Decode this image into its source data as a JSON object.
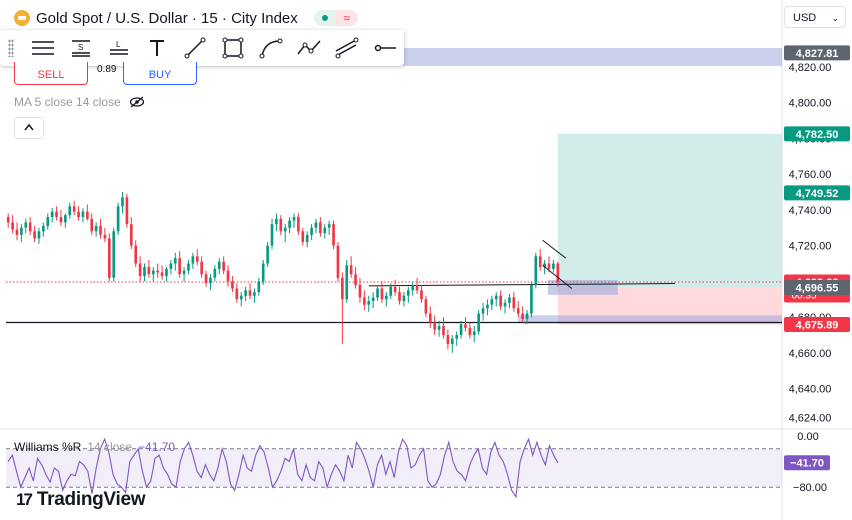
{
  "header": {
    "symbol_title": "Gold Spot / U.S. Dollar · 15 · City Index",
    "symbol_icon": "gold-bar-icon",
    "live_indicator": "≈"
  },
  "toolbar": {
    "tools": [
      {
        "name": "lines-tool",
        "icon": "horizontal-lines-icon"
      },
      {
        "name": "s-lines-tool",
        "icon": "s-lines-icon"
      },
      {
        "name": "l-lines-tool",
        "icon": "l-lines-icon"
      },
      {
        "name": "text-tool",
        "icon": "text-icon"
      },
      {
        "name": "trendline-tool",
        "icon": "trendline-icon"
      },
      {
        "name": "rectangle-tool",
        "icon": "rectangle-icon"
      },
      {
        "name": "curve-tool",
        "icon": "curve-icon"
      },
      {
        "name": "path-tool",
        "icon": "path-icon"
      },
      {
        "name": "channel-tool",
        "icon": "channel-icon"
      },
      {
        "name": "horizontal-ray-tool",
        "icon": "horizontal-ray-icon"
      }
    ]
  },
  "trading": {
    "sell_label": "SELL",
    "buy_label": "BUY",
    "spread": "0.89"
  },
  "indicator": {
    "ma_label": "MA 5 close 14 close",
    "collapse_symbol": "^"
  },
  "currency_selector": {
    "value": "USD",
    "chevron": "⌄"
  },
  "williams": {
    "name": "Williams %R",
    "params": "14 close",
    "value": "−41.70",
    "scale_top": "0.00",
    "scale_bottom": "−80.00",
    "badge": "−41.70",
    "upper_band": -20,
    "lower_band": -80,
    "series": [
      -40,
      -30,
      -55,
      -80,
      -65,
      -50,
      -70,
      -35,
      -45,
      -60,
      -72,
      -50,
      -55,
      -85,
      -70,
      -60,
      -62,
      -40,
      -45,
      -55,
      -90,
      -50,
      -20,
      -5,
      -25,
      -60,
      -75,
      -80,
      -88,
      -40,
      -30,
      -20,
      -55,
      -80,
      -70,
      -35,
      -30,
      -50,
      -60,
      -75,
      -80,
      -40,
      -20,
      -10,
      -30,
      -55,
      -65,
      -45,
      -60,
      -70,
      -50,
      -20,
      -40,
      -75,
      -85,
      -60,
      -30,
      -50,
      -55,
      -30,
      -15,
      -25,
      -50,
      -80,
      -70,
      -55,
      -35,
      -40,
      -20,
      -60,
      -70,
      -45,
      -65,
      -70,
      -40,
      -50,
      -80,
      -60,
      -45,
      -55,
      -70,
      -30,
      -50,
      -10,
      -20,
      -35,
      -55,
      -80,
      -45,
      -30,
      -60,
      -40,
      -65,
      -25,
      -5,
      -15,
      -50,
      -45,
      -30,
      -20,
      -70,
      -80,
      -75,
      -60,
      -30,
      -10,
      -40,
      -55,
      -60,
      -70,
      -45,
      -30,
      -20,
      -50,
      -60,
      -25,
      -10,
      -30,
      -40,
      -60,
      -85,
      -95,
      -40,
      -20,
      -5,
      -30,
      -10,
      -30,
      -45,
      -15,
      -30,
      -42
    ]
  },
  "branding": {
    "logo_mark": "17",
    "logo_text": "TradingView"
  },
  "colors": {
    "up": "#089981",
    "down": "#f23645",
    "wr_line": "#7e57c2",
    "target_zone": "#b2dfdb",
    "stop_zone": "#ffcdd2",
    "entry_zone": "#9fa8da"
  },
  "chart_data": {
    "type": "candlestick",
    "title": "Gold Spot / U.S. Dollar · 15 · City Index",
    "y_ticks": [
      4820.0,
      4800.0,
      4780.0,
      4760.0,
      4740.0,
      4720.0,
      4700.0,
      4680.0,
      4660.0,
      4640.0,
      4624.0
    ],
    "ylim": [
      4618,
      4835
    ],
    "price_badges": [
      {
        "label": "4,827.81",
        "value": 4827.81,
        "color": "#5d6670"
      },
      {
        "label": "4,782.50",
        "value": 4782.5,
        "color": "#089981"
      },
      {
        "label": "4,749.52",
        "value": 4749.52,
        "color": "#089981"
      },
      {
        "label": "4,699.66",
        "value": 4699.66,
        "color": "#f23645",
        "countdown": "00:35"
      },
      {
        "label": "4,696.55",
        "value": 4696.55,
        "color": "#5d6670"
      },
      {
        "label": "4,675.89",
        "value": 4675.89,
        "color": "#f23645"
      }
    ],
    "horizontal_lines": [
      {
        "value": 4677.0,
        "style": "solid"
      },
      {
        "value": 4699.66,
        "style": "dotted-red"
      }
    ],
    "candles": [
      [
        4736,
        4738,
        4730,
        4733
      ],
      [
        4733,
        4737,
        4727,
        4729
      ],
      [
        4729,
        4733,
        4723,
        4726
      ],
      [
        4726,
        4732,
        4722,
        4730
      ],
      [
        4730,
        4735,
        4727,
        4733
      ],
      [
        4733,
        4736,
        4726,
        4728
      ],
      [
        4728,
        4731,
        4722,
        4724
      ],
      [
        4724,
        4730,
        4721,
        4728
      ],
      [
        4728,
        4733,
        4725,
        4731
      ],
      [
        4731,
        4738,
        4729,
        4736
      ],
      [
        4736,
        4741,
        4733,
        4739
      ],
      [
        4739,
        4742,
        4734,
        4736
      ],
      [
        4736,
        4740,
        4731,
        4733
      ],
      [
        4733,
        4738,
        4730,
        4737
      ],
      [
        4737,
        4744,
        4735,
        4742
      ],
      [
        4742,
        4745,
        4737,
        4739
      ],
      [
        4739,
        4742,
        4734,
        4736
      ],
      [
        4736,
        4741,
        4733,
        4739
      ],
      [
        4739,
        4743,
        4734,
        4735
      ],
      [
        4735,
        4738,
        4726,
        4728
      ],
      [
        4728,
        4733,
        4725,
        4731
      ],
      [
        4731,
        4735,
        4724,
        4726
      ],
      [
        4726,
        4730,
        4722,
        4724
      ],
      [
        4724,
        4727,
        4700,
        4702
      ],
      [
        4702,
        4730,
        4700,
        4728
      ],
      [
        4728,
        4744,
        4726,
        4742
      ],
      [
        4742,
        4750,
        4738,
        4747
      ],
      [
        4747,
        4749,
        4730,
        4732
      ],
      [
        4732,
        4736,
        4718,
        4720
      ],
      [
        4720,
        4723,
        4708,
        4710
      ],
      [
        4710,
        4714,
        4700,
        4703
      ],
      [
        4703,
        4710,
        4700,
        4708
      ],
      [
        4708,
        4712,
        4702,
        4704
      ],
      [
        4704,
        4708,
        4700,
        4706
      ],
      [
        4706,
        4710,
        4702,
        4705
      ],
      [
        4705,
        4709,
        4701,
        4703
      ],
      [
        4703,
        4708,
        4700,
        4707
      ],
      [
        4707,
        4712,
        4704,
        4710
      ],
      [
        4710,
        4716,
        4706,
        4713
      ],
      [
        4713,
        4717,
        4702,
        4704
      ],
      [
        4704,
        4708,
        4700,
        4706
      ],
      [
        4706,
        4712,
        4704,
        4710
      ],
      [
        4710,
        4716,
        4707,
        4714
      ],
      [
        4714,
        4718,
        4709,
        4711
      ],
      [
        4711,
        4714,
        4702,
        4704
      ],
      [
        4704,
        4706,
        4697,
        4699
      ],
      [
        4699,
        4704,
        4695,
        4702
      ],
      [
        4702,
        4709,
        4700,
        4707
      ],
      [
        4707,
        4713,
        4704,
        4711
      ],
      [
        4711,
        4714,
        4704,
        4706
      ],
      [
        4706,
        4709,
        4697,
        4700
      ],
      [
        4700,
        4703,
        4694,
        4696
      ],
      [
        4696,
        4699,
        4688,
        4690
      ],
      [
        4690,
        4694,
        4686,
        4692
      ],
      [
        4692,
        4697,
        4689,
        4695
      ],
      [
        4695,
        4699,
        4690,
        4692
      ],
      [
        4692,
        4696,
        4688,
        4694
      ],
      [
        4694,
        4702,
        4692,
        4700
      ],
      [
        4700,
        4712,
        4698,
        4710
      ],
      [
        4710,
        4722,
        4708,
        4720
      ],
      [
        4720,
        4735,
        4718,
        4732
      ],
      [
        4732,
        4738,
        4728,
        4735
      ],
      [
        4735,
        4737,
        4726,
        4728
      ],
      [
        4728,
        4732,
        4722,
        4730
      ],
      [
        4730,
        4736,
        4727,
        4734
      ],
      [
        4734,
        4738,
        4730,
        4736
      ],
      [
        4736,
        4738,
        4726,
        4728
      ],
      [
        4728,
        4730,
        4720,
        4722
      ],
      [
        4722,
        4728,
        4719,
        4726
      ],
      [
        4726,
        4732,
        4723,
        4730
      ],
      [
        4730,
        4735,
        4727,
        4733
      ],
      [
        4733,
        4736,
        4725,
        4727
      ],
      [
        4727,
        4732,
        4724,
        4730
      ],
      [
        4730,
        4734,
        4726,
        4732
      ],
      [
        4732,
        4734,
        4718,
        4720
      ],
      [
        4720,
        4722,
        4700,
        4702
      ],
      [
        4702,
        4705,
        4665,
        4690
      ],
      [
        4690,
        4712,
        4688,
        4709
      ],
      [
        4709,
        4714,
        4702,
        4704
      ],
      [
        4704,
        4708,
        4696,
        4698
      ],
      [
        4698,
        4702,
        4688,
        4691
      ],
      [
        4691,
        4695,
        4684,
        4687
      ],
      [
        4687,
        4692,
        4683,
        4689
      ],
      [
        4689,
        4694,
        4685,
        4691
      ],
      [
        4691,
        4698,
        4689,
        4696
      ],
      [
        4696,
        4700,
        4688,
        4690
      ],
      [
        4690,
        4694,
        4686,
        4692
      ],
      [
        4692,
        4699,
        4690,
        4697
      ],
      [
        4697,
        4701,
        4692,
        4694
      ],
      [
        4694,
        4697,
        4687,
        4689
      ],
      [
        4689,
        4694,
        4686,
        4692
      ],
      [
        4692,
        4697,
        4688,
        4695
      ],
      [
        4695,
        4700,
        4692,
        4698
      ],
      [
        4698,
        4702,
        4693,
        4695
      ],
      [
        4695,
        4698,
        4688,
        4690
      ],
      [
        4690,
        4692,
        4680,
        4682
      ],
      [
        4682,
        4686,
        4674,
        4677
      ],
      [
        4677,
        4681,
        4670,
        4673
      ],
      [
        4673,
        4678,
        4669,
        4675
      ],
      [
        4675,
        4680,
        4668,
        4670
      ],
      [
        4670,
        4673,
        4662,
        4665
      ],
      [
        4665,
        4670,
        4660,
        4668
      ],
      [
        4668,
        4672,
        4664,
        4670
      ],
      [
        4670,
        4678,
        4668,
        4676
      ],
      [
        4676,
        4680,
        4672,
        4674
      ],
      [
        4674,
        4677,
        4668,
        4670
      ],
      [
        4670,
        4675,
        4666,
        4672
      ],
      [
        4672,
        4684,
        4670,
        4682
      ],
      [
        4682,
        4688,
        4678,
        4685
      ],
      [
        4685,
        4690,
        4681,
        4687
      ],
      [
        4687,
        4692,
        4684,
        4690
      ],
      [
        4690,
        4694,
        4686,
        4692
      ],
      [
        4692,
        4695,
        4684,
        4686
      ],
      [
        4686,
        4690,
        4682,
        4688
      ],
      [
        4688,
        4693,
        4685,
        4691
      ],
      [
        4691,
        4694,
        4683,
        4685
      ],
      [
        4685,
        4689,
        4680,
        4682
      ],
      [
        4682,
        4686,
        4677,
        4679
      ],
      [
        4679,
        4684,
        4676,
        4682
      ],
      [
        4682,
        4700,
        4680,
        4698
      ],
      [
        4698,
        4716,
        4696,
        4714
      ],
      [
        4714,
        4718,
        4706,
        4708
      ],
      [
        4708,
        4712,
        4704,
        4710
      ],
      [
        4710,
        4714,
        4705,
        4707
      ],
      [
        4707,
        4712,
        4705,
        4710
      ],
      [
        4710,
        4711,
        4697,
        4699.66
      ]
    ],
    "long_position": {
      "entry_value": 4696.55,
      "target_value": 4782.5,
      "stop_value": 4675.89,
      "start_index": 125
    }
  }
}
